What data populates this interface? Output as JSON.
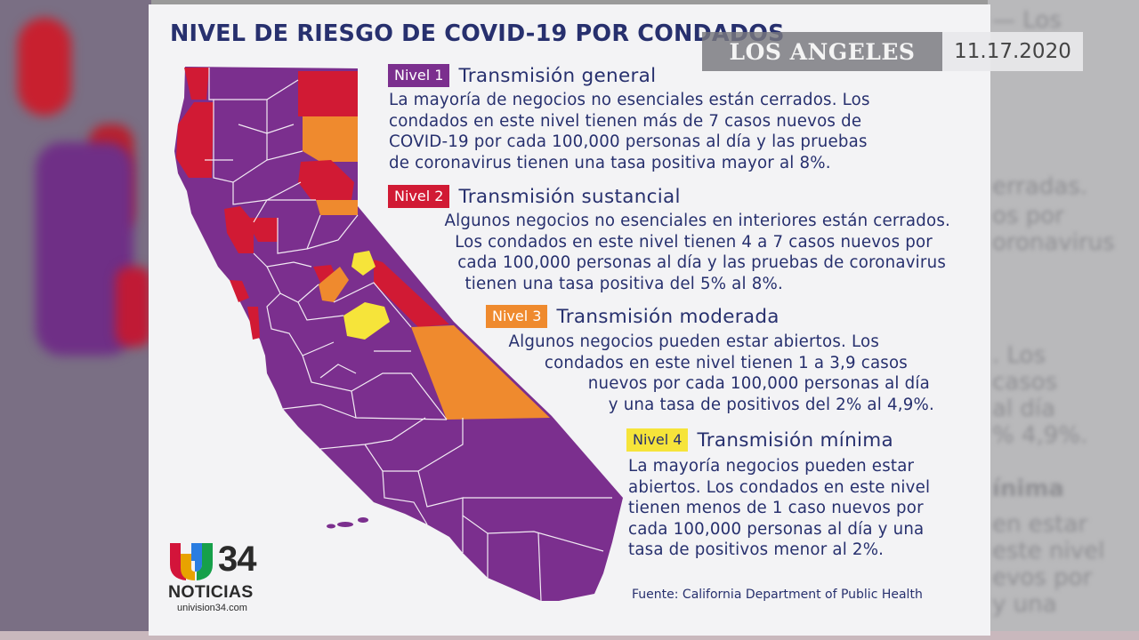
{
  "title": "NIVEL DE RIESGO DE COVID-19 POR CONDADOS",
  "location_tag": "LOS ANGELES",
  "date_tag": "11.17.2020",
  "colors": {
    "title": "#27306e",
    "nivel1": "#7b2f8e",
    "nivel2": "#d11a34",
    "nivel3": "#ef8a2e",
    "nivel4": "#f6e43a"
  },
  "levels": [
    {
      "badge": "Nivel 1",
      "name": "Transmisión general",
      "desc": [
        "La mayoría de negocios no esenciales están cerrados. Los",
        "condados en este nivel tienen más de 7 casos nuevos de",
        "COVID-19 por cada 100,000 personas al día y las pruebas",
        "de coronavirus tienen una tasa positiva mayor al 8%."
      ]
    },
    {
      "badge": "Nivel 2",
      "name": "Transmisión sustancial",
      "desc": [
        "Algunos negocios no esenciales en interiores están cerrados.",
        "Los condados en este nivel tienen 4 a 7 casos nuevos por",
        "cada 100,000 personas al día y las pruebas de coronavirus",
        "tienen una tasa positiva del 5% al 8%."
      ]
    },
    {
      "badge": "Nivel 3",
      "name": "Transmisión moderada",
      "desc": [
        "Algunos negocios pueden estar abiertos. Los",
        "condados en este nivel tienen 1 a 3,9 casos",
        "nuevos por cada 100,000 personas al día",
        "y una tasa de positivos del 2% al 4,9%."
      ]
    },
    {
      "badge": "Nivel 4",
      "name": "Transmisión mínima",
      "desc": [
        "La mayoría negocios pueden estar",
        "abiertos. Los condados en este nivel",
        "tienen menos de 1 caso nuevos por",
        "cada 100,000 personas al día y una",
        "tasa de positivos menor al 2%."
      ]
    }
  ],
  "source": "Fuente: California Department of Public Health",
  "logo": {
    "number": "34",
    "word": "NOTICIAS",
    "url": "univision34.com"
  }
}
